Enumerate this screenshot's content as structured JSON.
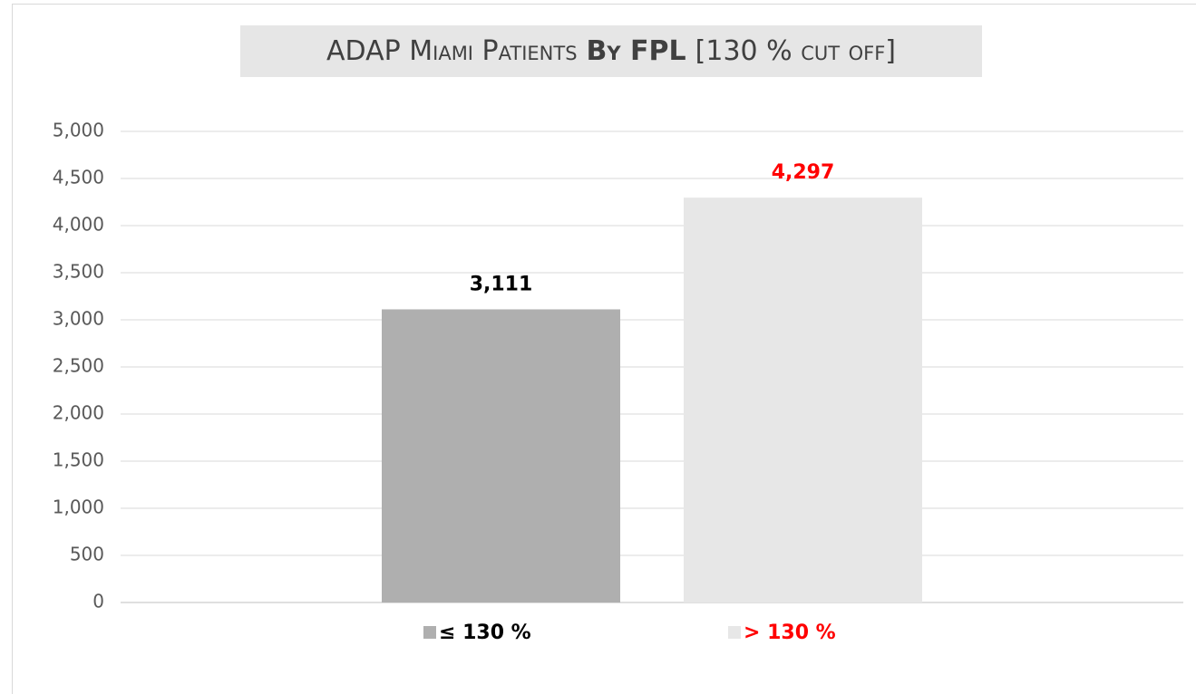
{
  "chart_data": {
    "type": "bar",
    "title": [
      "ADAP Miami Patients",
      "By FPL",
      "[130 % cut off]"
    ],
    "categories": [
      null
    ],
    "series": [
      {
        "name": "≤ 130 %",
        "color": "#afafaf",
        "label_color": "#000000",
        "values": [
          3111
        ],
        "value_labels": [
          "3,111"
        ]
      },
      {
        "name": "> 130 %",
        "color": "#e7e7e7",
        "label_color": "#ff0000",
        "values": [
          4297
        ],
        "value_labels": [
          "4,297"
        ]
      }
    ],
    "ylim": [
      0,
      5000
    ],
    "yticks": [
      0,
      500,
      {
        "value": 1000,
        "label": "1,000"
      },
      {
        "value": 1500,
        "label": "1,500"
      },
      {
        "value": 2000,
        "label": "2,000"
      },
      {
        "value": 2500,
        "label": "2,500"
      },
      {
        "value": 3000,
        "label": "3,000"
      },
      {
        "value": 3500,
        "label": "3,500"
      },
      {
        "value": 4000,
        "label": "4,000"
      },
      {
        "value": 4500,
        "label": "4,500"
      },
      {
        "value": 5000,
        "label": "5,000"
      }
    ],
    "grid": true,
    "legend": "bottom"
  }
}
